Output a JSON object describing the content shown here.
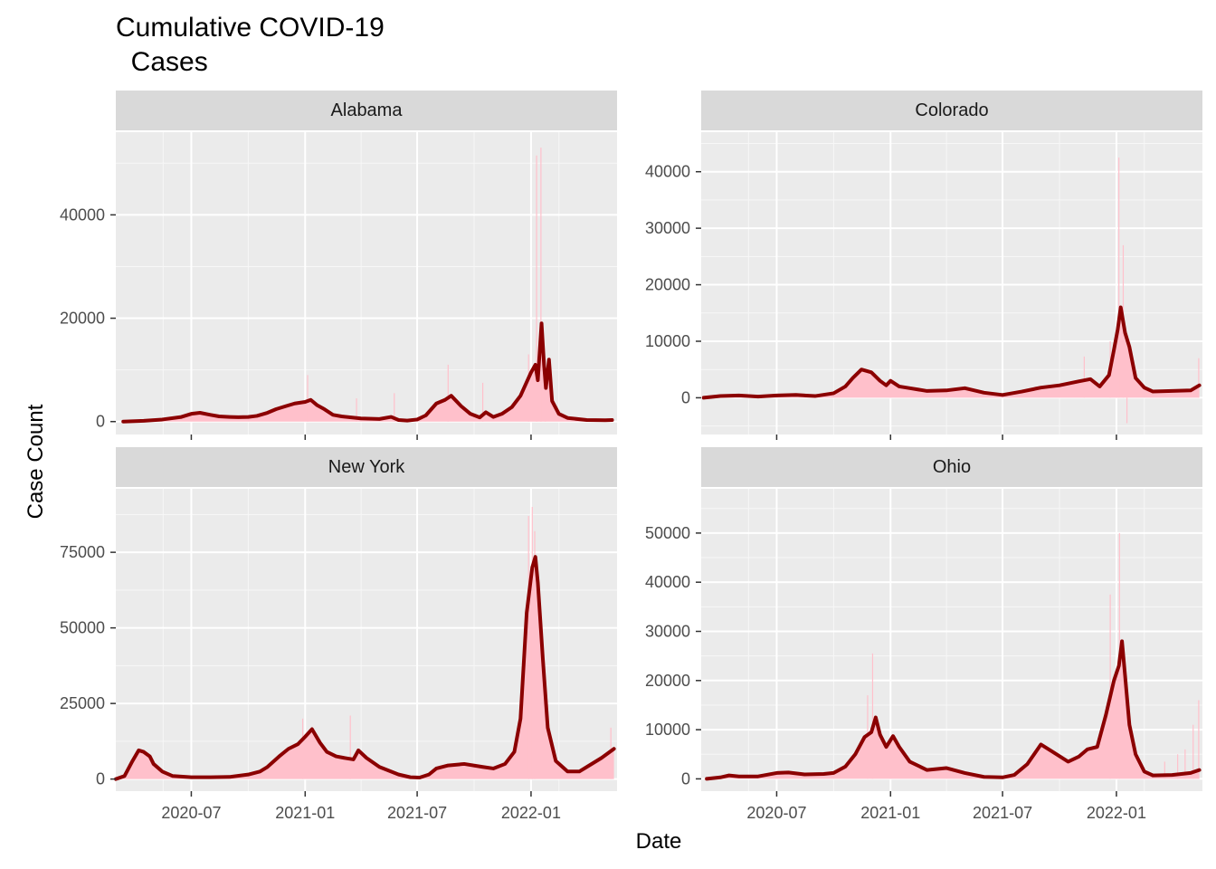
{
  "title": "Cumulative COVID-19\n  Cases",
  "chart_data": {
    "type": "area",
    "title": "Cumulative COVID-19\n  Cases",
    "xlabel": "Date",
    "ylabel": "Case Count",
    "x_ticks": [
      "2020-07",
      "2021-01",
      "2021-07",
      "2022-01"
    ],
    "x_range": [
      "2020-03-01",
      "2022-05-20"
    ],
    "grid": true,
    "bar_color": "#ffc0cb",
    "line_color": "#8b0000",
    "panel_bg": "#ebebeb",
    "strip_bg": "#d9d9d9",
    "panels": [
      {
        "name": "Alabama",
        "ylim": [
          -2500,
          56000
        ],
        "y_ticks": [
          0,
          20000,
          40000
        ],
        "y_tick_labels": [
          "0",
          "20000",
          "40000"
        ],
        "smoothed": [
          [
            "2020-03-13",
            0
          ],
          [
            "2020-04-15",
            150
          ],
          [
            "2020-05-15",
            400
          ],
          [
            "2020-06-15",
            900
          ],
          [
            "2020-07-01",
            1500
          ],
          [
            "2020-07-15",
            1700
          ],
          [
            "2020-08-01",
            1300
          ],
          [
            "2020-08-15",
            1000
          ],
          [
            "2020-09-01",
            900
          ],
          [
            "2020-09-15",
            850
          ],
          [
            "2020-10-01",
            900
          ],
          [
            "2020-10-15",
            1100
          ],
          [
            "2020-11-01",
            1700
          ],
          [
            "2020-11-15",
            2400
          ],
          [
            "2020-12-01",
            3000
          ],
          [
            "2020-12-15",
            3500
          ],
          [
            "2021-01-01",
            3800
          ],
          [
            "2021-01-10",
            4200
          ],
          [
            "2021-01-20",
            3200
          ],
          [
            "2021-02-01",
            2400
          ],
          [
            "2021-02-15",
            1300
          ],
          [
            "2021-03-01",
            1000
          ],
          [
            "2021-04-01",
            600
          ],
          [
            "2021-05-01",
            500
          ],
          [
            "2021-05-20",
            900
          ],
          [
            "2021-06-01",
            300
          ],
          [
            "2021-06-15",
            200
          ],
          [
            "2021-07-01",
            400
          ],
          [
            "2021-07-15",
            1200
          ],
          [
            "2021-08-01",
            3500
          ],
          [
            "2021-08-15",
            4200
          ],
          [
            "2021-08-25",
            5000
          ],
          [
            "2021-09-10",
            3000
          ],
          [
            "2021-09-25",
            1500
          ],
          [
            "2021-10-10",
            800
          ],
          [
            "2021-10-20",
            1800
          ],
          [
            "2021-11-01",
            900
          ],
          [
            "2021-11-15",
            1500
          ],
          [
            "2021-12-01",
            2800
          ],
          [
            "2021-12-15",
            5000
          ],
          [
            "2022-01-01",
            9500
          ],
          [
            "2022-01-08",
            11000
          ],
          [
            "2022-01-12",
            8000
          ],
          [
            "2022-01-18",
            19000
          ],
          [
            "2022-01-22",
            11000
          ],
          [
            "2022-01-25",
            6500
          ],
          [
            "2022-01-30",
            12000
          ],
          [
            "2022-02-04",
            4000
          ],
          [
            "2022-02-15",
            1500
          ],
          [
            "2022-03-01",
            700
          ],
          [
            "2022-04-01",
            300
          ],
          [
            "2022-05-01",
            250
          ],
          [
            "2022-05-12",
            300
          ]
        ],
        "spikes": [
          [
            "2021-01-05",
            9000
          ],
          [
            "2021-03-25",
            4500
          ],
          [
            "2021-05-25",
            5500
          ],
          [
            "2021-08-20",
            11000
          ],
          [
            "2021-10-15",
            7500
          ],
          [
            "2021-12-28",
            13000
          ],
          [
            "2022-01-10",
            51500
          ],
          [
            "2022-01-17",
            53000
          ],
          [
            "2022-01-24",
            12000
          ]
        ]
      },
      {
        "name": "Colorado",
        "ylim": [
          -6500,
          47000
        ],
        "y_ticks": [
          0,
          10000,
          20000,
          30000,
          40000
        ],
        "y_tick_labels": [
          "0",
          "10000",
          "20000",
          "30000",
          "40000"
        ],
        "smoothed": [
          [
            "2020-03-05",
            0
          ],
          [
            "2020-04-01",
            300
          ],
          [
            "2020-05-01",
            400
          ],
          [
            "2020-06-01",
            200
          ],
          [
            "2020-07-01",
            400
          ],
          [
            "2020-08-01",
            500
          ],
          [
            "2020-09-01",
            300
          ],
          [
            "2020-10-01",
            800
          ],
          [
            "2020-10-20",
            2000
          ],
          [
            "2020-11-01",
            3500
          ],
          [
            "2020-11-15",
            5000
          ],
          [
            "2020-12-01",
            4500
          ],
          [
            "2020-12-15",
            3000
          ],
          [
            "2020-12-25",
            2200
          ],
          [
            "2021-01-01",
            3000
          ],
          [
            "2021-01-15",
            2000
          ],
          [
            "2021-02-01",
            1700
          ],
          [
            "2021-03-01",
            1200
          ],
          [
            "2021-04-01",
            1300
          ],
          [
            "2021-05-01",
            1700
          ],
          [
            "2021-06-01",
            900
          ],
          [
            "2021-07-01",
            500
          ],
          [
            "2021-08-01",
            1100
          ],
          [
            "2021-09-01",
            1800
          ],
          [
            "2021-10-01",
            2200
          ],
          [
            "2021-11-01",
            2900
          ],
          [
            "2021-11-20",
            3300
          ],
          [
            "2021-12-05",
            2000
          ],
          [
            "2021-12-20",
            4000
          ],
          [
            "2021-12-28",
            8500
          ],
          [
            "2022-01-03",
            12000
          ],
          [
            "2022-01-08",
            16000
          ],
          [
            "2022-01-15",
            11500
          ],
          [
            "2022-01-22",
            9000
          ],
          [
            "2022-02-01",
            3500
          ],
          [
            "2022-02-15",
            1800
          ],
          [
            "2022-03-01",
            1100
          ],
          [
            "2022-04-01",
            1200
          ],
          [
            "2022-05-01",
            1300
          ],
          [
            "2022-05-15",
            2200
          ]
        ],
        "spikes": [
          [
            "2021-12-22",
            10000
          ],
          [
            "2022-01-05",
            42500
          ],
          [
            "2022-01-12",
            27000
          ],
          [
            "2022-01-18",
            -4500
          ],
          [
            "2022-05-14",
            7000
          ],
          [
            "2021-11-10",
            7300
          ]
        ]
      },
      {
        "name": "New York",
        "ylim": [
          -4000,
          96000
        ],
        "y_ticks": [
          0,
          25000,
          50000,
          75000
        ],
        "y_tick_labels": [
          "0",
          "25000",
          "50000",
          "75000"
        ],
        "smoothed": [
          [
            "2020-03-01",
            0
          ],
          [
            "2020-03-15",
            1000
          ],
          [
            "2020-03-28",
            6000
          ],
          [
            "2020-04-07",
            9500
          ],
          [
            "2020-04-15",
            9000
          ],
          [
            "2020-04-25",
            7500
          ],
          [
            "2020-05-01",
            5000
          ],
          [
            "2020-05-15",
            2500
          ],
          [
            "2020-06-01",
            1000
          ],
          [
            "2020-07-01",
            600
          ],
          [
            "2020-08-01",
            600
          ],
          [
            "2020-09-01",
            700
          ],
          [
            "2020-10-01",
            1500
          ],
          [
            "2020-10-20",
            2500
          ],
          [
            "2020-11-01",
            4000
          ],
          [
            "2020-11-20",
            7500
          ],
          [
            "2020-12-05",
            10000
          ],
          [
            "2020-12-20",
            11500
          ],
          [
            "2021-01-01",
            14000
          ],
          [
            "2021-01-12",
            16500
          ],
          [
            "2021-01-25",
            12000
          ],
          [
            "2021-02-05",
            9000
          ],
          [
            "2021-02-20",
            7500
          ],
          [
            "2021-03-05",
            7000
          ],
          [
            "2021-03-20",
            6500
          ],
          [
            "2021-03-28",
            9500
          ],
          [
            "2021-04-10",
            7000
          ],
          [
            "2021-05-01",
            4000
          ],
          [
            "2021-06-01",
            1500
          ],
          [
            "2021-06-20",
            600
          ],
          [
            "2021-07-05",
            500
          ],
          [
            "2021-07-20",
            1500
          ],
          [
            "2021-08-01",
            3500
          ],
          [
            "2021-08-20",
            4500
          ],
          [
            "2021-09-15",
            5000
          ],
          [
            "2021-10-15",
            4000
          ],
          [
            "2021-11-01",
            3500
          ],
          [
            "2021-11-20",
            5000
          ],
          [
            "2021-12-05",
            9000
          ],
          [
            "2021-12-15",
            20000
          ],
          [
            "2021-12-25",
            55000
          ],
          [
            "2022-01-03",
            70000
          ],
          [
            "2022-01-08",
            73500
          ],
          [
            "2022-01-12",
            65000
          ],
          [
            "2022-01-20",
            40000
          ],
          [
            "2022-01-28",
            17000
          ],
          [
            "2022-02-10",
            6000
          ],
          [
            "2022-03-01",
            2500
          ],
          [
            "2022-03-20",
            2500
          ],
          [
            "2022-04-05",
            4500
          ],
          [
            "2022-04-25",
            7000
          ],
          [
            "2022-05-15",
            10000
          ]
        ],
        "spikes": [
          [
            "2020-12-28",
            20000
          ],
          [
            "2021-03-15",
            21000
          ],
          [
            "2021-12-28",
            87000
          ],
          [
            "2022-01-03",
            90000
          ],
          [
            "2022-01-07",
            82000
          ],
          [
            "2022-05-10",
            17000
          ]
        ]
      },
      {
        "name": "Ohio",
        "ylim": [
          -2500,
          59000
        ],
        "y_ticks": [
          0,
          10000,
          20000,
          30000,
          40000,
          50000
        ],
        "y_tick_labels": [
          "0",
          "10000",
          "20000",
          "30000",
          "40000",
          "50000"
        ],
        "smoothed": [
          [
            "2020-03-10",
            0
          ],
          [
            "2020-04-01",
            300
          ],
          [
            "2020-04-15",
            700
          ],
          [
            "2020-05-01",
            500
          ],
          [
            "2020-06-01",
            500
          ],
          [
            "2020-07-01",
            1200
          ],
          [
            "2020-07-20",
            1300
          ],
          [
            "2020-08-15",
            900
          ],
          [
            "2020-09-15",
            1000
          ],
          [
            "2020-10-01",
            1200
          ],
          [
            "2020-10-20",
            2500
          ],
          [
            "2020-11-05",
            5000
          ],
          [
            "2020-11-20",
            8500
          ],
          [
            "2020-12-01",
            9500
          ],
          [
            "2020-12-08",
            12500
          ],
          [
            "2020-12-15",
            9000
          ],
          [
            "2020-12-25",
            6500
          ],
          [
            "2021-01-05",
            8700
          ],
          [
            "2021-01-15",
            6500
          ],
          [
            "2021-02-01",
            3500
          ],
          [
            "2021-03-01",
            1800
          ],
          [
            "2021-04-01",
            2200
          ],
          [
            "2021-05-01",
            1200
          ],
          [
            "2021-06-01",
            400
          ],
          [
            "2021-07-01",
            300
          ],
          [
            "2021-07-20",
            800
          ],
          [
            "2021-08-10",
            3000
          ],
          [
            "2021-09-01",
            7000
          ],
          [
            "2021-09-20",
            5500
          ],
          [
            "2021-10-15",
            3500
          ],
          [
            "2021-11-01",
            4500
          ],
          [
            "2021-11-15",
            6000
          ],
          [
            "2021-12-01",
            6500
          ],
          [
            "2021-12-15",
            13000
          ],
          [
            "2021-12-28",
            20000
          ],
          [
            "2022-01-05",
            23000
          ],
          [
            "2022-01-10",
            28000
          ],
          [
            "2022-01-15",
            21000
          ],
          [
            "2022-01-22",
            11000
          ],
          [
            "2022-02-01",
            5000
          ],
          [
            "2022-02-15",
            1500
          ],
          [
            "2022-03-01",
            700
          ],
          [
            "2022-04-01",
            800
          ],
          [
            "2022-05-01",
            1200
          ],
          [
            "2022-05-15",
            1800
          ]
        ],
        "spikes": [
          [
            "2020-11-25",
            17000
          ],
          [
            "2020-12-03",
            25500
          ],
          [
            "2021-12-22",
            37500
          ],
          [
            "2022-01-06",
            50000
          ],
          [
            "2022-03-20",
            3500
          ],
          [
            "2022-04-10",
            5000
          ],
          [
            "2022-04-22",
            6000
          ],
          [
            "2022-05-05",
            11000
          ],
          [
            "2022-05-14",
            16000
          ]
        ]
      }
    ]
  },
  "layout": {
    "x_axis_label": "Date",
    "y_axis_label": "Case Count"
  }
}
